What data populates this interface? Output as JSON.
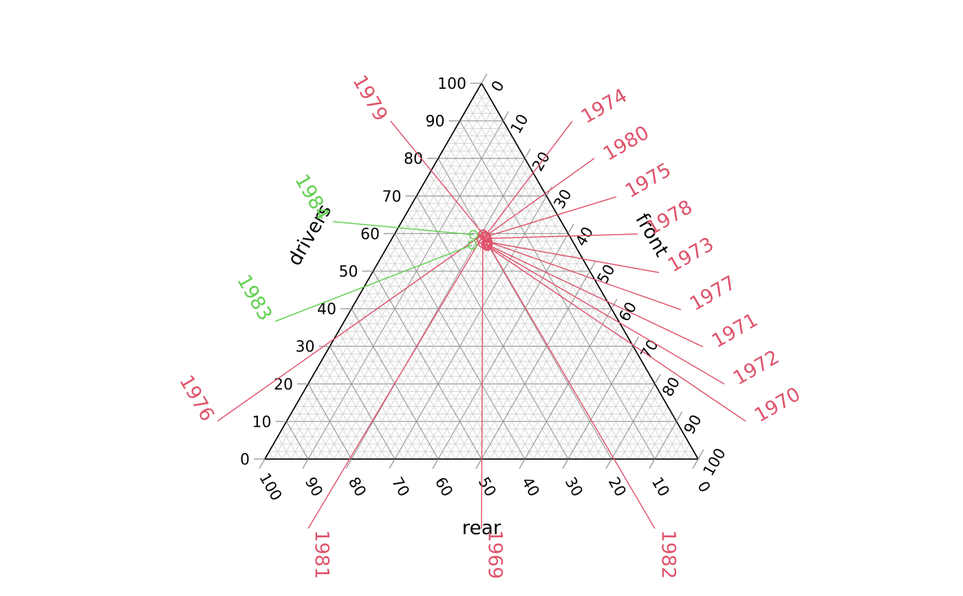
{
  "chart_data": {
    "type": "scatter",
    "subtype": "ternary",
    "axes": {
      "drivers": {
        "label": "drivers",
        "ticks": [
          0,
          10,
          20,
          30,
          40,
          50,
          60,
          70,
          80,
          90,
          100
        ]
      },
      "front": {
        "label": "front",
        "ticks": [
          0,
          10,
          20,
          30,
          40,
          50,
          60,
          70,
          80,
          90,
          100
        ]
      },
      "rear": {
        "label": "rear",
        "ticks": [
          100,
          90,
          80,
          70,
          60,
          50,
          40,
          30,
          20,
          10,
          0
        ]
      }
    },
    "grid": true,
    "colors": {
      "pre_1983": "#DF536B",
      "post_1983": "#61D04F",
      "frame": "#000000",
      "grid_major": "#9E9E9E",
      "grid_minor": "#D3D3D3"
    },
    "points": [
      {
        "label": "1969",
        "drivers": 57.4,
        "front": 21.6,
        "rear": 21.0,
        "group": "pre_1983"
      },
      {
        "label": "1970",
        "drivers": 56.6,
        "front": 23.0,
        "rear": 20.4,
        "group": "pre_1983"
      },
      {
        "label": "1971",
        "drivers": 57.3,
        "front": 22.3,
        "rear": 20.4,
        "group": "pre_1983"
      },
      {
        "label": "1972",
        "drivers": 56.9,
        "front": 22.8,
        "rear": 20.3,
        "group": "pre_1983"
      },
      {
        "label": "1973",
        "drivers": 57.8,
        "front": 22.4,
        "rear": 19.8,
        "group": "pre_1983"
      },
      {
        "label": "1974",
        "drivers": 59.4,
        "front": 21.2,
        "rear": 19.4,
        "group": "pre_1983"
      },
      {
        "label": "1975",
        "drivers": 59.2,
        "front": 21.5,
        "rear": 19.3,
        "group": "pre_1983"
      },
      {
        "label": "1976",
        "drivers": 59.8,
        "front": 20.4,
        "rear": 19.8,
        "group": "pre_1983"
      },
      {
        "label": "1977",
        "drivers": 57.8,
        "front": 22.6,
        "rear": 19.6,
        "group": "pre_1983"
      },
      {
        "label": "1978",
        "drivers": 58.7,
        "front": 21.9,
        "rear": 19.4,
        "group": "pre_1983"
      },
      {
        "label": "1979",
        "drivers": 59.9,
        "front": 20.4,
        "rear": 19.7,
        "group": "pre_1983"
      },
      {
        "label": "1980",
        "drivers": 59.3,
        "front": 21.3,
        "rear": 19.4,
        "group": "pre_1983"
      },
      {
        "label": "1981",
        "drivers": 58.6,
        "front": 20.6,
        "rear": 20.8,
        "group": "pre_1983"
      },
      {
        "label": "1982",
        "drivers": 57.2,
        "front": 22.9,
        "rear": 19.9,
        "group": "pre_1983"
      },
      {
        "label": "1983",
        "drivers": 57.0,
        "front": 19.4,
        "rear": 23.6,
        "group": "post_1983"
      },
      {
        "label": "1984",
        "drivers": 59.7,
        "front": 18.3,
        "rear": 22.0,
        "group": "post_1983"
      }
    ],
    "labels": [
      {
        "text": "1969",
        "side": "bottom"
      },
      {
        "text": "1970",
        "side": "right"
      },
      {
        "text": "1971",
        "side": "right"
      },
      {
        "text": "1972",
        "side": "right"
      },
      {
        "text": "1973",
        "side": "right"
      },
      {
        "text": "1974",
        "side": "right"
      },
      {
        "text": "1975",
        "side": "right"
      },
      {
        "text": "1976",
        "side": "left"
      },
      {
        "text": "1977",
        "side": "right"
      },
      {
        "text": "1978",
        "side": "right"
      },
      {
        "text": "1979",
        "side": "left"
      },
      {
        "text": "1980",
        "side": "right"
      },
      {
        "text": "1981",
        "side": "bottom"
      },
      {
        "text": "1982",
        "side": "bottom"
      },
      {
        "text": "1983",
        "side": "left"
      },
      {
        "text": "1984",
        "side": "left"
      }
    ]
  }
}
